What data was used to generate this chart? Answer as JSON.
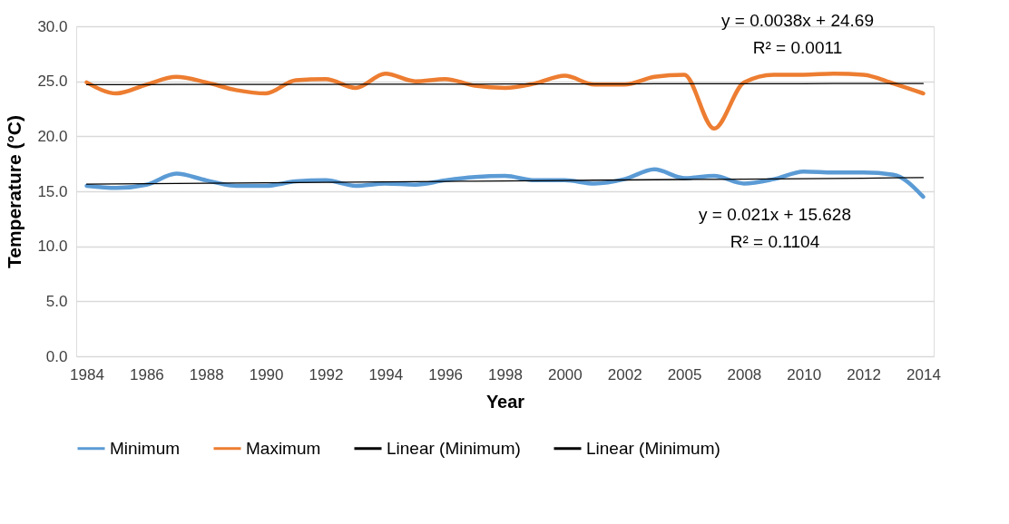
{
  "chart_data": {
    "type": "line",
    "xlabel": "Year",
    "ylabel": "Temperature (°C)",
    "categories": [
      "1984",
      null,
      "1986",
      null,
      "1988",
      null,
      "1990",
      null,
      "1992",
      null,
      "1994",
      null,
      "1996",
      null,
      "1998",
      null,
      "2000",
      null,
      "2002",
      null,
      "2005",
      null,
      "2008",
      null,
      "2010",
      null,
      "2012",
      null,
      "2014"
    ],
    "series": [
      {
        "name": "Minimum",
        "color": "#5b9bd5",
        "values": [
          15.5,
          15.3,
          15.6,
          16.6,
          16.0,
          15.5,
          15.5,
          15.9,
          16.0,
          15.5,
          15.7,
          15.6,
          16.0,
          16.3,
          16.4,
          16.0,
          16.0,
          15.7,
          16.1,
          17.0,
          16.2,
          16.4,
          15.7,
          16.1,
          16.8,
          16.7,
          16.7,
          16.5,
          14.5
        ]
      },
      {
        "name": "Maximum",
        "color": "#ed7d31",
        "values": [
          24.9,
          23.9,
          24.7,
          25.4,
          24.9,
          24.2,
          23.9,
          25.1,
          25.2,
          24.4,
          25.7,
          25.0,
          25.2,
          24.6,
          24.4,
          24.8,
          25.5,
          24.7,
          24.7,
          25.4,
          25.6,
          20.7,
          24.9,
          25.6,
          25.6,
          25.7,
          25.6,
          24.8,
          23.9
        ]
      },
      {
        "name": "Linear (Minimum)",
        "type": "line",
        "color": "#000000",
        "values": [
          15.65,
          15.67,
          15.69,
          15.71,
          15.73,
          15.75,
          15.77,
          15.8,
          15.82,
          15.84,
          15.86,
          15.88,
          15.9,
          15.92,
          15.94,
          15.96,
          15.98,
          16.01,
          16.03,
          16.05,
          16.07,
          16.09,
          16.11,
          16.13,
          16.15,
          16.17,
          16.19,
          16.22,
          16.24
        ]
      },
      {
        "name": "Linear (Minimum)",
        "type": "line",
        "color": "#000000",
        "values": [
          24.69,
          24.7,
          24.7,
          24.71,
          24.71,
          24.71,
          24.72,
          24.72,
          24.72,
          24.73,
          24.73,
          24.74,
          24.74,
          24.74,
          24.75,
          24.75,
          24.75,
          24.76,
          24.76,
          24.77,
          24.77,
          24.77,
          24.78,
          24.78,
          24.78,
          24.79,
          24.79,
          24.8,
          24.8
        ]
      }
    ],
    "ylim": [
      0,
      30
    ],
    "yticks": [
      {
        "value": 0,
        "label": "0.0"
      },
      {
        "value": 5,
        "label": "5.0"
      },
      {
        "value": 10,
        "label": "10.0"
      },
      {
        "value": 15,
        "label": "15.0"
      },
      {
        "value": 20,
        "label": "20.0"
      },
      {
        "value": 25,
        "label": "25.0"
      },
      {
        "value": 30,
        "label": "30.0"
      }
    ],
    "annotations": [
      "y = 0.0038x + 24.69",
      "R² = 0.0011",
      "y = 0.021x + 15.628",
      "R² = 0.1104"
    ],
    "grid": "y",
    "legend": "bottom",
    "marker": "none",
    "line_style": "solid"
  }
}
